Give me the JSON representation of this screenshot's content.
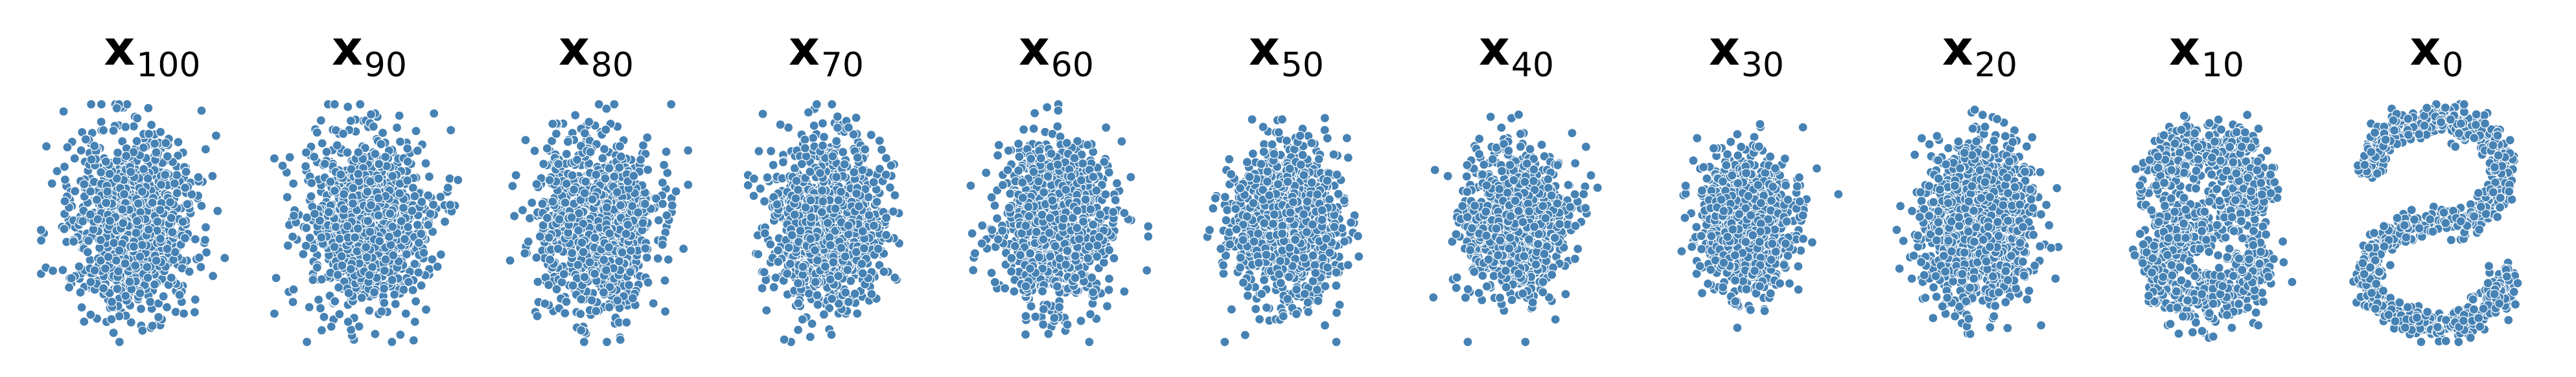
{
  "figure": {
    "point_color": "#4682b4",
    "edge_color": "#ffffff"
  },
  "chart_data": [
    {
      "type": "scatter",
      "title": {
        "symbol": "x",
        "subscript": "100"
      },
      "shape": "gaussian",
      "spread": 0.97,
      "wobble": 0.02,
      "n_points": 1100
    },
    {
      "type": "scatter",
      "title": {
        "symbol": "x",
        "subscript": "90"
      },
      "shape": "gaussian",
      "spread": 0.95,
      "wobble": 0.03,
      "n_points": 1100
    },
    {
      "type": "scatter",
      "title": {
        "symbol": "x",
        "subscript": "80"
      },
      "shape": "gaussian",
      "spread": 0.93,
      "wobble": 0.03,
      "n_points": 1100
    },
    {
      "type": "scatter",
      "title": {
        "symbol": "x",
        "subscript": "70"
      },
      "shape": "gaussian",
      "spread": 0.9,
      "wobble": 0.04,
      "n_points": 1100
    },
    {
      "type": "scatter",
      "title": {
        "symbol": "x",
        "subscript": "60"
      },
      "shape": "gaussian",
      "spread": 0.87,
      "wobble": 0.05,
      "n_points": 1100
    },
    {
      "type": "scatter",
      "title": {
        "symbol": "x",
        "subscript": "50"
      },
      "shape": "gaussian",
      "spread": 0.83,
      "wobble": 0.06,
      "n_points": 1100
    },
    {
      "type": "scatter",
      "title": {
        "symbol": "x",
        "subscript": "40"
      },
      "shape": "gaussian",
      "spread": 0.78,
      "wobble": 0.08,
      "n_points": 1100
    },
    {
      "type": "scatter",
      "title": {
        "symbol": "x",
        "subscript": "30"
      },
      "shape": "gaussian",
      "spread": 0.7,
      "wobble": 0.12,
      "n_points": 1100
    },
    {
      "type": "scatter",
      "title": {
        "symbol": "x",
        "subscript": "20"
      },
      "shape": "s-curve",
      "spread": 0.55,
      "wobble": 0.22,
      "n_points": 1100
    },
    {
      "type": "scatter",
      "title": {
        "symbol": "x",
        "subscript": "10"
      },
      "shape": "s-curve",
      "spread": 0.3,
      "wobble": 0.4,
      "n_points": 1100
    },
    {
      "type": "scatter",
      "title": {
        "symbol": "x",
        "subscript": "0"
      },
      "shape": "s-curve",
      "spread": 0.0,
      "wobble": 0.0,
      "n_points": 1100
    }
  ]
}
